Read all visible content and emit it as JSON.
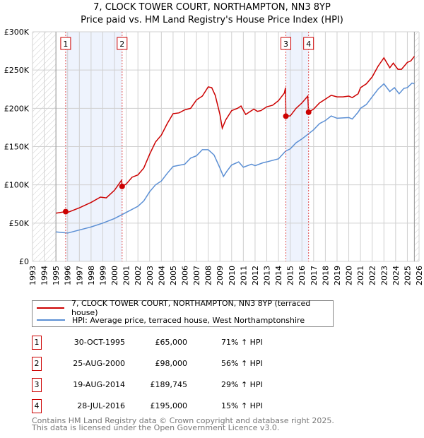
{
  "chart_data": {
    "type": "line",
    "title": "7, CLOCK TOWER COURT, NORTHAMPTON, NN3 8YP",
    "subtitle": "Price paid vs. HM Land Registry's House Price Index (HPI)",
    "xlim": [
      1993,
      2026
    ],
    "ylim": [
      0,
      300000
    ],
    "x_ticks": [
      "1993",
      "1994",
      "1995",
      "1996",
      "1997",
      "1998",
      "1999",
      "2000",
      "2001",
      "2002",
      "2003",
      "2004",
      "2005",
      "2006",
      "2007",
      "2008",
      "2009",
      "2010",
      "2011",
      "2012",
      "2013",
      "2014",
      "2015",
      "2016",
      "2017",
      "2018",
      "2019",
      "2020",
      "2021",
      "2022",
      "2023",
      "2024",
      "2025",
      "2026"
    ],
    "y_ticks": [
      {
        "v": 0,
        "label": "£0"
      },
      {
        "v": 50000,
        "label": "£50K"
      },
      {
        "v": 100000,
        "label": "£100K"
      },
      {
        "v": 150000,
        "label": "£150K"
      },
      {
        "v": 200000,
        "label": "£200K"
      },
      {
        "v": 250000,
        "label": "£250K"
      },
      {
        "v": 300000,
        "label": "£300K"
      }
    ],
    "grid": true,
    "shaded_periods": [
      [
        1995.83,
        2000.65
      ],
      [
        2014.63,
        2016.57
      ]
    ],
    "hatched_periods": [
      [
        1993,
        1995
      ],
      [
        2025.6,
        2026
      ]
    ],
    "series": [
      {
        "name": "7, CLOCK TOWER COURT, NORTHAMPTON, NN3 8YP (terraced house)",
        "color": "#cc0000",
        "x": [
          1995.0,
          1995.8,
          1996,
          1997,
          1998,
          1998.8,
          1999.3,
          2000,
          2000.6,
          2000.65,
          2001,
          2001.5,
          2002,
          2002.5,
          2003,
          2003.5,
          2004,
          2004.5,
          2005,
          2005.5,
          2006,
          2006.5,
          2007,
          2007.5,
          2008,
          2008.3,
          2008.6,
          2009,
          2009.2,
          2009.5,
          2010,
          2010.5,
          2010.8,
          2011.2,
          2011.6,
          2011.9,
          2012.2,
          2012.5,
          2013,
          2013.5,
          2014,
          2014.5,
          2014.6,
          2014.63,
          2015,
          2015.5,
          2016,
          2016.5,
          2016.57,
          2017,
          2017.5,
          2018,
          2018.5,
          2019,
          2019.5,
          2020,
          2020.3,
          2020.8,
          2021,
          2021.5,
          2022,
          2022.5,
          2023,
          2023.5,
          2023.8,
          2024.2,
          2024.5,
          2025,
          2025.3,
          2025.6
        ],
        "y": [
          63000,
          65000,
          64000,
          70000,
          77000,
          84000,
          83000,
          93000,
          106000,
          98000,
          101000,
          110000,
          113000,
          122000,
          140000,
          156000,
          165000,
          180000,
          193000,
          194000,
          198000,
          200000,
          211000,
          216000,
          228000,
          227000,
          217000,
          192000,
          174000,
          185000,
          197000,
          200000,
          203000,
          192000,
          196000,
          199000,
          196000,
          197000,
          202000,
          204000,
          210000,
          220000,
          227000,
          190000,
          190000,
          200000,
          207000,
          216000,
          195000,
          199000,
          207000,
          212000,
          217000,
          215000,
          215000,
          216000,
          214000,
          219000,
          227000,
          232000,
          241000,
          255000,
          266000,
          253000,
          259000,
          251000,
          251000,
          260000,
          262000,
          268000
        ]
      },
      {
        "name": "HPI: Average price, terraced house, West Northamptonshire",
        "color": "#5b8fd4",
        "x": [
          1995,
          1996,
          1997,
          1998,
          1999,
          2000,
          2001,
          2002,
          2002.5,
          2003,
          2003.5,
          2004,
          2004.5,
          2005,
          2006,
          2006.5,
          2007,
          2007.5,
          2008,
          2008.5,
          2009,
          2009.3,
          2009.6,
          2010,
          2010.6,
          2011,
          2011.7,
          2012,
          2012.7,
          2013,
          2014,
          2014.6,
          2015,
          2015.5,
          2016,
          2016.5,
          2017,
          2017.5,
          2018,
          2018.5,
          2019,
          2020,
          2020.3,
          2020.8,
          2021,
          2021.5,
          2022,
          2022.5,
          2023,
          2023.5,
          2023.9,
          2024.3,
          2024.7,
          2025,
          2025.4,
          2025.6
        ],
        "y": [
          38500,
          37000,
          41000,
          45000,
          50000,
          56000,
          64000,
          72000,
          79000,
          91000,
          100000,
          105000,
          115000,
          124000,
          127000,
          135000,
          138000,
          146000,
          146000,
          139000,
          122000,
          111000,
          118000,
          126000,
          130000,
          123000,
          127000,
          125000,
          129000,
          130000,
          134000,
          144000,
          147000,
          155000,
          160000,
          166000,
          172000,
          180000,
          184000,
          190000,
          187000,
          188000,
          186000,
          195000,
          200000,
          205000,
          215000,
          225000,
          232000,
          222000,
          227000,
          219000,
          226000,
          227000,
          233000,
          232000
        ]
      }
    ],
    "sales": [
      {
        "n": "1",
        "date": "30-OCT-1995",
        "x": 1995.83,
        "price": "£65,000",
        "value": 65000,
        "hpi": "71% ↑ HPI"
      },
      {
        "n": "2",
        "date": "25-AUG-2000",
        "x": 2000.65,
        "price": "£98,000",
        "value": 98000,
        "hpi": "56% ↑ HPI"
      },
      {
        "n": "3",
        "date": "19-AUG-2014",
        "x": 2014.63,
        "price": "£189,745",
        "value": 189745,
        "hpi": "29% ↑ HPI"
      },
      {
        "n": "4",
        "date": "28-JUL-2016",
        "x": 2016.57,
        "price": "£195,000",
        "value": 195000,
        "hpi": "15% ↑ HPI"
      }
    ]
  },
  "footer": {
    "line1": "Contains HM Land Registry data © Crown copyright and database right 2025.",
    "line2": "This data is licensed under the Open Government Licence v3.0."
  }
}
